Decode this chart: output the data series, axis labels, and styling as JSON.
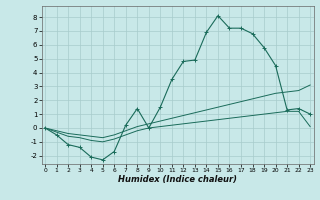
{
  "xlabel": "Humidex (Indice chaleur)",
  "bg_color": "#c8e8e8",
  "grid_color": "#a8cccc",
  "line_color": "#1a6b5a",
  "xlim": [
    -0.3,
    23.3
  ],
  "ylim": [
    -2.6,
    8.8
  ],
  "xticks": [
    0,
    1,
    2,
    3,
    4,
    5,
    6,
    7,
    8,
    9,
    10,
    11,
    12,
    13,
    14,
    15,
    16,
    17,
    18,
    19,
    20,
    21,
    22,
    23
  ],
  "yticks": [
    -2,
    -1,
    0,
    1,
    2,
    3,
    4,
    5,
    6,
    7,
    8
  ],
  "main_x": [
    0,
    1,
    2,
    3,
    4,
    5,
    6,
    7,
    8,
    9,
    10,
    11,
    12,
    13,
    14,
    15,
    16,
    17,
    18,
    19,
    20,
    21,
    22,
    23
  ],
  "main_y": [
    0.0,
    -0.5,
    -1.2,
    -1.4,
    -2.1,
    -2.3,
    -1.7,
    0.2,
    1.4,
    0.0,
    1.5,
    3.5,
    4.8,
    4.9,
    6.9,
    8.1,
    7.2,
    7.2,
    6.8,
    5.8,
    4.5,
    1.3,
    1.4,
    1.0
  ],
  "upper_x": [
    0,
    1,
    2,
    3,
    4,
    5,
    6,
    7,
    8,
    9,
    10,
    11,
    12,
    13,
    14,
    15,
    16,
    17,
    18,
    19,
    20,
    21,
    22,
    23
  ],
  "upper_y": [
    0.0,
    -0.2,
    -0.4,
    -0.5,
    -0.6,
    -0.7,
    -0.5,
    -0.2,
    0.1,
    0.3,
    0.5,
    0.7,
    0.9,
    1.1,
    1.3,
    1.5,
    1.7,
    1.9,
    2.1,
    2.3,
    2.5,
    2.6,
    2.7,
    3.1
  ],
  "lower_x": [
    0,
    1,
    2,
    3,
    4,
    5,
    6,
    7,
    8,
    9,
    10,
    11,
    12,
    13,
    14,
    15,
    16,
    17,
    18,
    19,
    20,
    21,
    22,
    23
  ],
  "lower_y": [
    0.0,
    -0.3,
    -0.6,
    -0.7,
    -0.9,
    -1.0,
    -0.8,
    -0.5,
    -0.2,
    0.0,
    0.1,
    0.2,
    0.3,
    0.4,
    0.5,
    0.6,
    0.7,
    0.8,
    0.9,
    1.0,
    1.1,
    1.2,
    1.2,
    0.1
  ]
}
